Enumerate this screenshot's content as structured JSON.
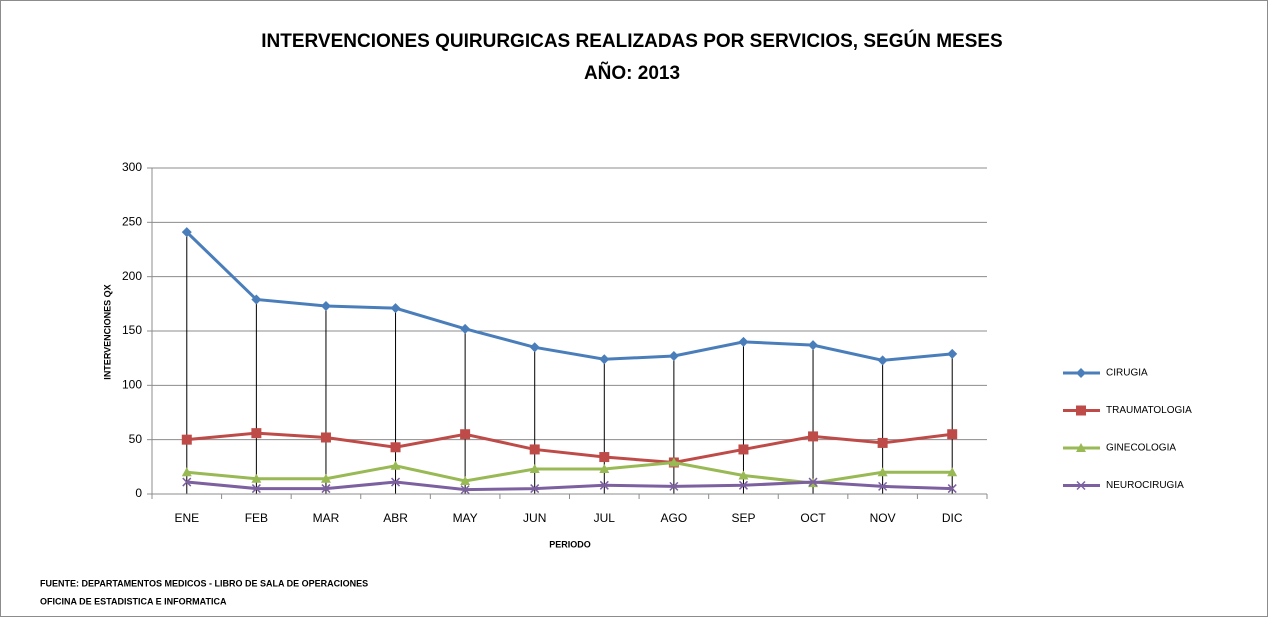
{
  "chart_data": {
    "type": "line",
    "title": "INTERVENCIONES QUIRURGICAS REALIZADAS POR SERVICIOS, SEGÚN MESES",
    "subtitle": "AÑO: 2013",
    "x_label": "PERIODO",
    "y_label": "INTERVENCIONES QX",
    "categories": [
      "ENE",
      "FEB",
      "MAR",
      "ABR",
      "MAY",
      "JUN",
      "JUL",
      "AGO",
      "SEP",
      "OCT",
      "NOV",
      "DIC"
    ],
    "series": [
      {
        "name": "CIRUGIA",
        "color": "#4a7ebb",
        "marker": "diamond",
        "values": [
          241,
          179,
          173,
          171,
          152,
          135,
          124,
          127,
          140,
          137,
          123,
          129
        ]
      },
      {
        "name": "TRAUMATOLOGIA",
        "color": "#be4b48",
        "marker": "square",
        "values": [
          50,
          56,
          52,
          43,
          55,
          41,
          34,
          29,
          41,
          53,
          47,
          55
        ]
      },
      {
        "name": "GINECOLOGIA",
        "color": "#98b954",
        "marker": "triangle",
        "values": [
          20,
          14,
          14,
          26,
          12,
          23,
          23,
          29,
          17,
          10,
          20,
          20
        ]
      },
      {
        "name": "NEUROCIRUGIA",
        "color": "#7d60a0",
        "marker": "x",
        "values": [
          11,
          5,
          5,
          11,
          4,
          5,
          8,
          7,
          8,
          11,
          7,
          5
        ]
      }
    ],
    "ylim": [
      0,
      300
    ],
    "yticks": [
      0,
      50,
      100,
      150,
      200,
      250,
      300
    ],
    "grid": true,
    "drop_lines": true,
    "legend": "right",
    "notes": [
      "FUENTE: DEPARTAMENTOS MEDICOS - LIBRO DE SALA DE OPERACIONES",
      "OFICINA DE ESTADISTICA E INFORMATICA"
    ]
  }
}
